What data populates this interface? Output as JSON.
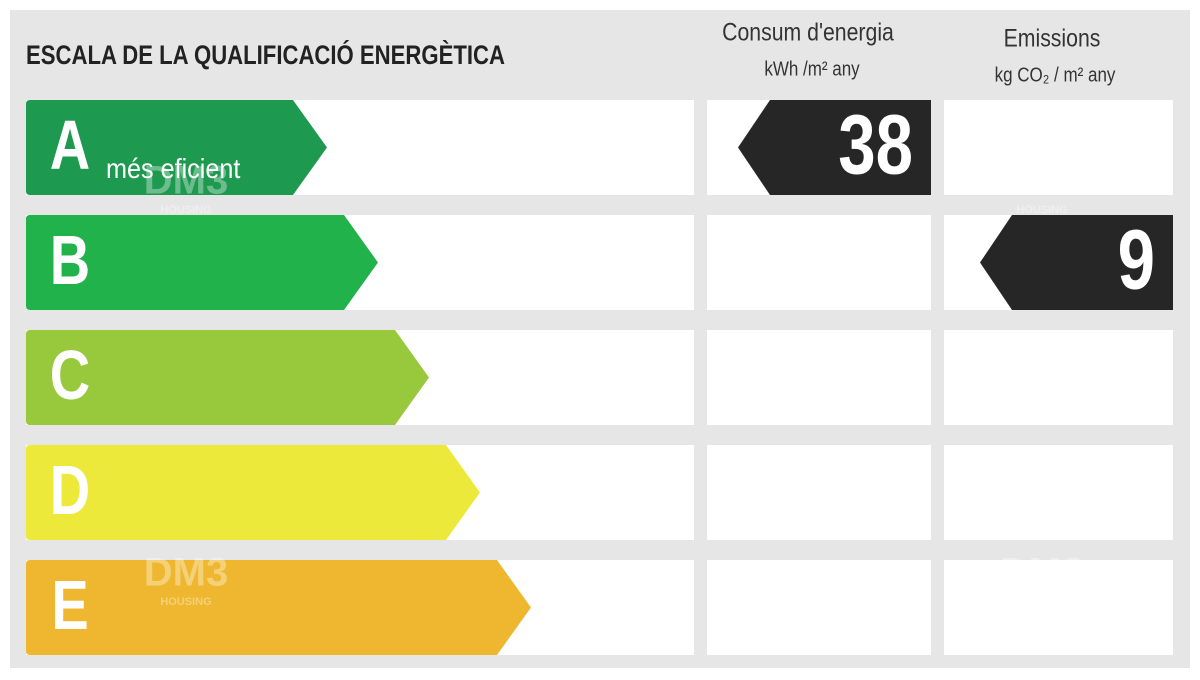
{
  "header": {
    "title": "ESCALA DE LA QUALIFICACIÓ ENERGÈTICA",
    "consumption": {
      "title": "Consum d'energia",
      "unit": "kWh /m²  any"
    },
    "emissions": {
      "title": "Emissions",
      "unit": "kg CO₂  / m²  any"
    }
  },
  "watermark": {
    "brand": "DM3",
    "tagline": "HOUSING"
  },
  "scale": {
    "rows": [
      {
        "letter": "A",
        "color": "#1e9a50",
        "note": "més eficient",
        "consumption": 38
      },
      {
        "letter": "B",
        "color": "#22b24c",
        "emissions": 9
      },
      {
        "letter": "C",
        "color": "#98c93c"
      },
      {
        "letter": "D",
        "color": "#ede93a"
      },
      {
        "letter": "E",
        "color": "#efb72f"
      }
    ]
  }
}
